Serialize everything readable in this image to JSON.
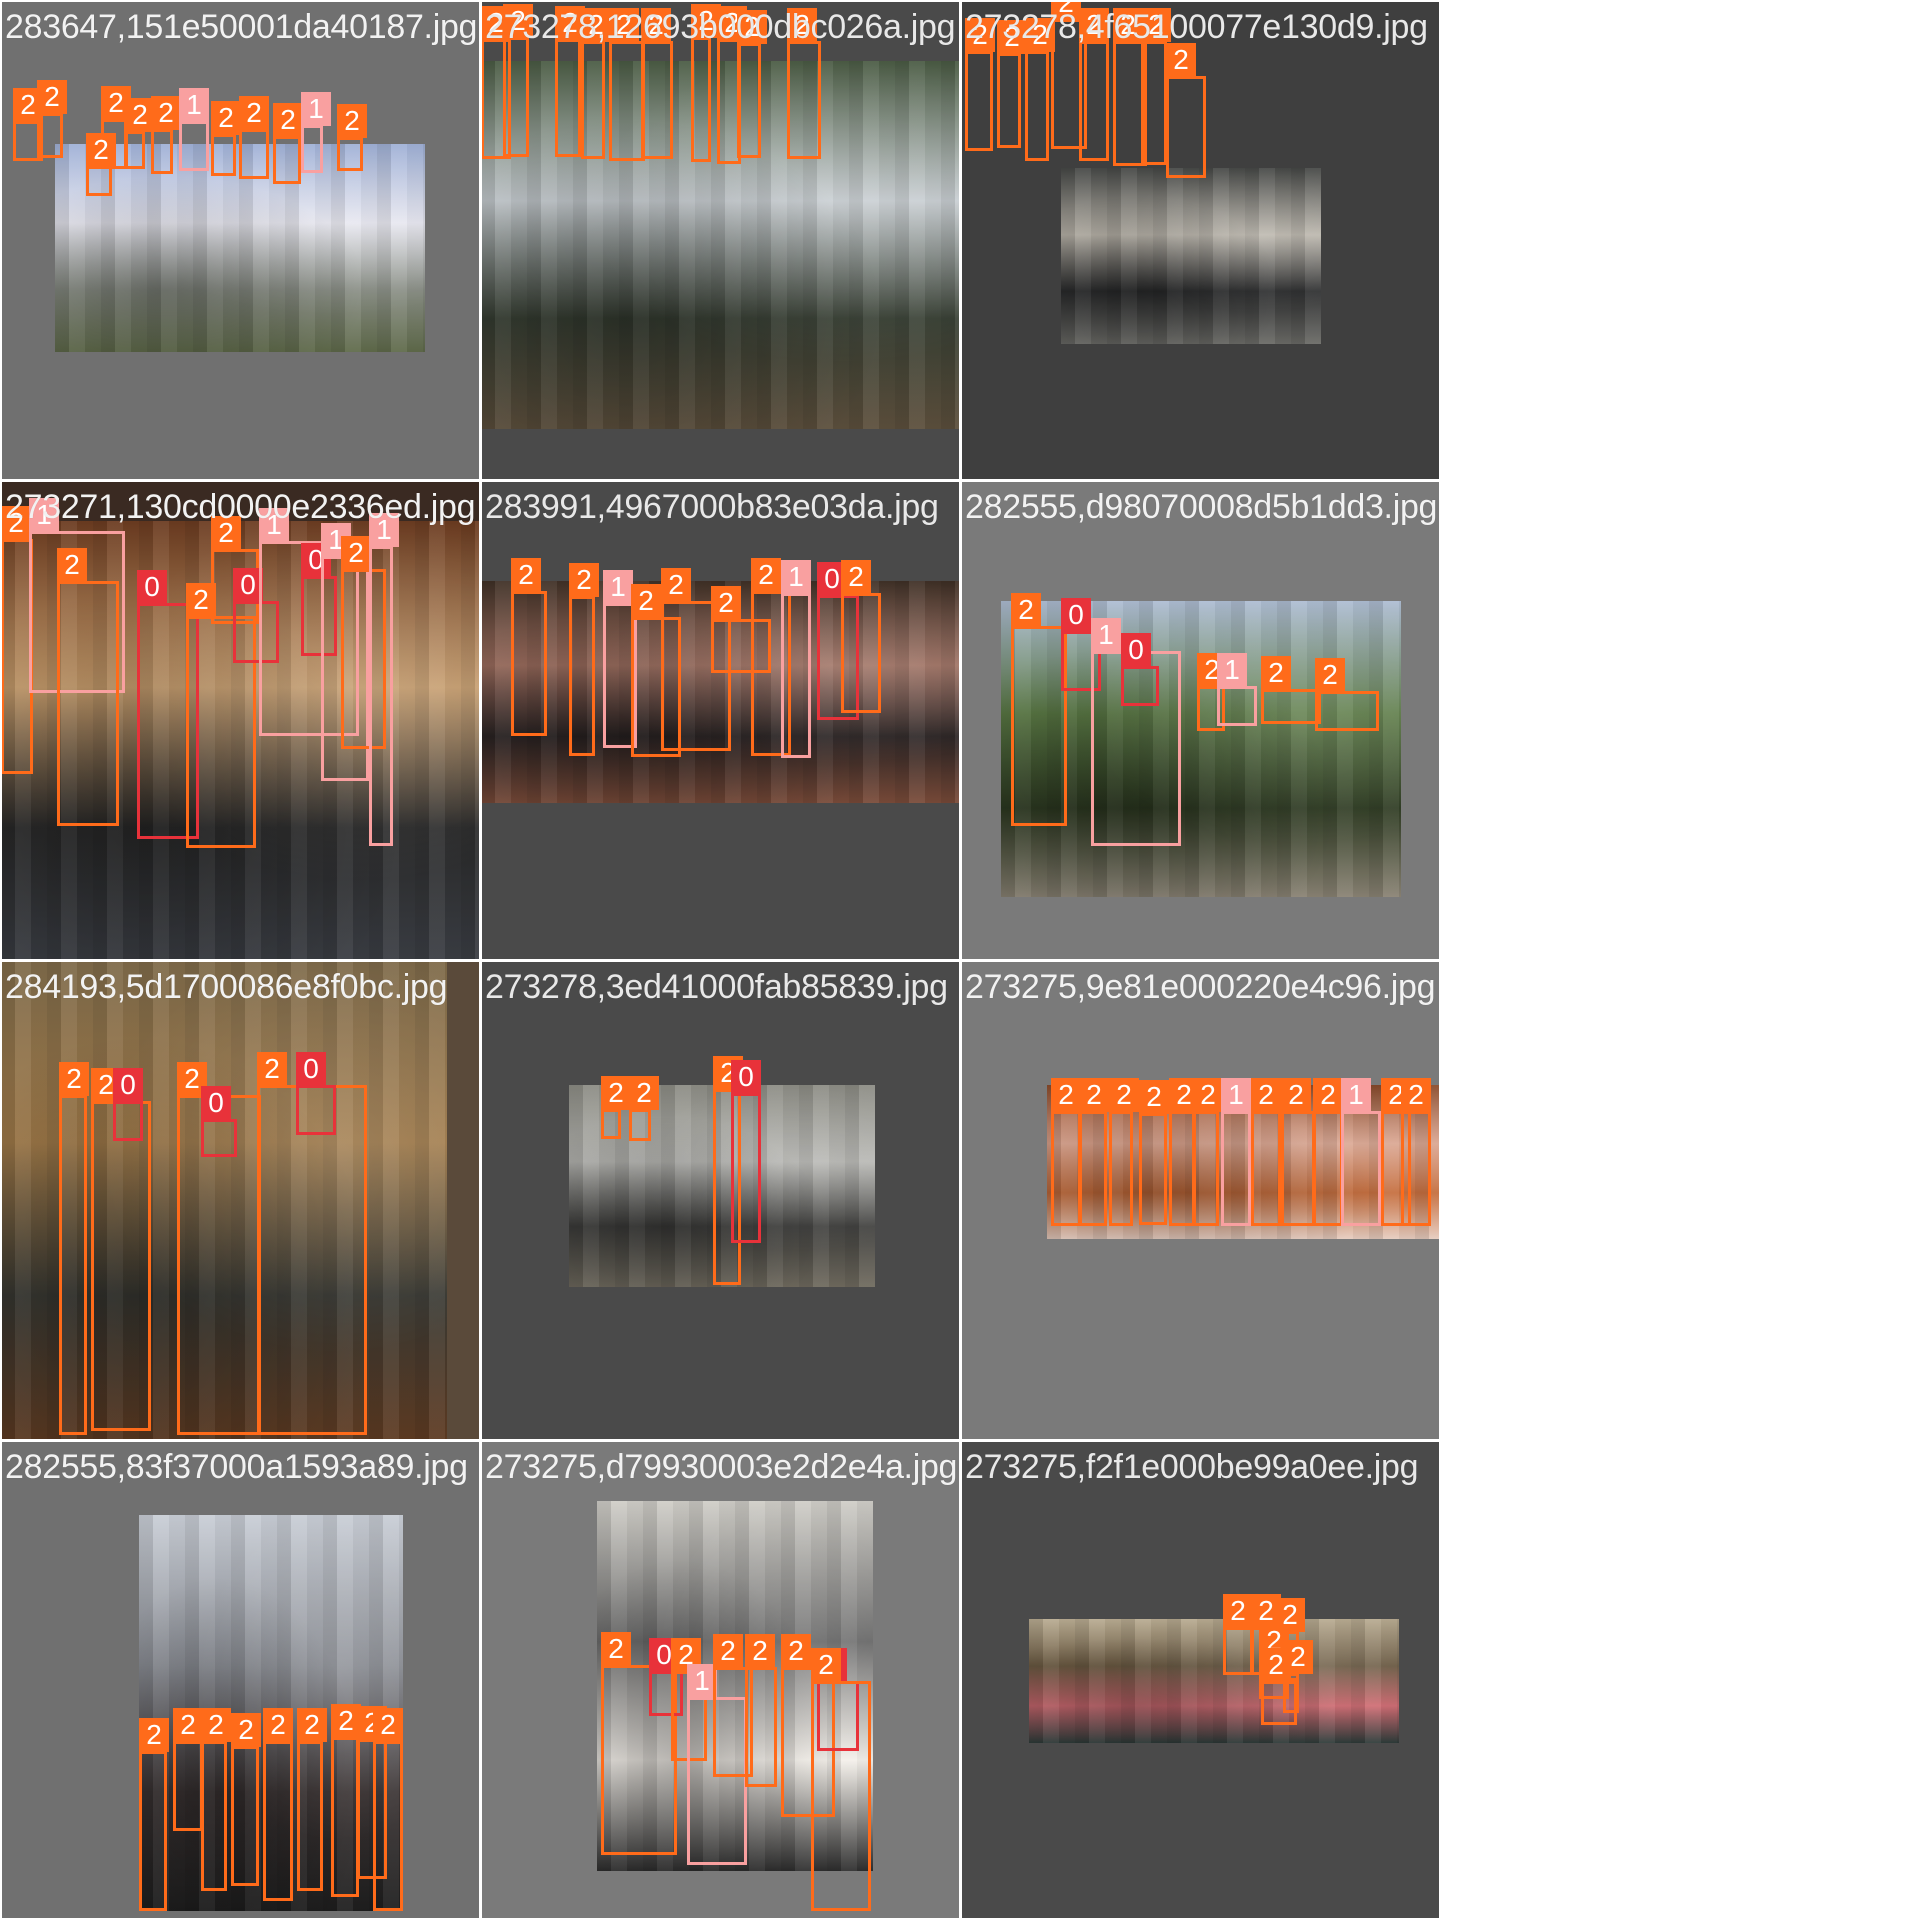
{
  "tiles": [
    {
      "label": "283647,151e50001da40187.jpg",
      "bg": "#707070",
      "photo": {
        "l": 54,
        "t": 143,
        "w": 370,
        "h": 208,
        "colors": [
          "#9fb0d6",
          "#e6e6ef",
          "#8a8f86",
          "#5f6a4a"
        ]
      },
      "boxes": [
        [
          12,
          120,
          30,
          40,
          2
        ],
        [
          36,
          112,
          26,
          45,
          2
        ],
        [
          100,
          118,
          26,
          50,
          2
        ],
        [
          124,
          130,
          20,
          38,
          2
        ],
        [
          150,
          128,
          22,
          45,
          2
        ],
        [
          178,
          120,
          30,
          50,
          1
        ],
        [
          210,
          133,
          25,
          42,
          2
        ],
        [
          238,
          128,
          30,
          50,
          2
        ],
        [
          272,
          135,
          28,
          48,
          2
        ],
        [
          300,
          124,
          22,
          48,
          1
        ],
        [
          336,
          136,
          26,
          34,
          2
        ],
        [
          85,
          165,
          26,
          30,
          2
        ]
      ]
    },
    {
      "label": "273278,12693b000dbc026a.jpg",
      "bg": "#4a4a4a",
      "photo": {
        "l": 0,
        "t": 60,
        "w": 478,
        "h": 368,
        "colors": [
          "#4a5b43",
          "#c6ccd0",
          "#384034",
          "#5c4f3c"
        ]
      },
      "boxes": [
        [
          0,
          38,
          30,
          120,
          2
        ],
        [
          22,
          36,
          26,
          120,
          2
        ],
        [
          74,
          38,
          26,
          118,
          2
        ],
        [
          100,
          40,
          24,
          118,
          2
        ],
        [
          128,
          40,
          36,
          120,
          2
        ],
        [
          160,
          40,
          32,
          118,
          2
        ],
        [
          210,
          36,
          20,
          125,
          2
        ],
        [
          236,
          38,
          24,
          125,
          2
        ],
        [
          256,
          42,
          24,
          115,
          2
        ],
        [
          306,
          40,
          34,
          118,
          2
        ]
      ]
    },
    {
      "label": "273278,4f65100077e130d9.jpg",
      "bg": "#3f3f3f",
      "photo": {
        "l": 100,
        "t": 167,
        "w": 260,
        "h": 176,
        "colors": [
          "#464846",
          "#b9b4aa",
          "#2c2d2e",
          "#6a6a66"
        ]
      },
      "boxes": [
        [
          4,
          50,
          28,
          100,
          2
        ],
        [
          36,
          52,
          24,
          95,
          2
        ],
        [
          64,
          50,
          24,
          110,
          2
        ],
        [
          90,
          18,
          36,
          130,
          2
        ],
        [
          118,
          40,
          30,
          120,
          2
        ],
        [
          152,
          40,
          34,
          125,
          2
        ],
        [
          180,
          40,
          26,
          124,
          2
        ],
        [
          205,
          75,
          40,
          102,
          2
        ]
      ]
    },
    {
      "label": "273271,130cd0000e2336ed.jpg",
      "bg": "#3a2a22",
      "photo": {
        "l": 0,
        "t": 40,
        "w": 478,
        "h": 438,
        "colors": [
          "#6b3b20",
          "#c59b6b",
          "#2b2b2b",
          "#3a3d43"
        ]
      },
      "boxes": [
        [
          0,
          58,
          32,
          235,
          2
        ],
        [
          28,
          50,
          96,
          162,
          1
        ],
        [
          56,
          100,
          62,
          245,
          2
        ],
        [
          136,
          122,
          62,
          236,
          0
        ],
        [
          185,
          135,
          70,
          232,
          2
        ],
        [
          210,
          68,
          48,
          75,
          2
        ],
        [
          232,
          120,
          46,
          62,
          0
        ],
        [
          258,
          60,
          100,
          195,
          1
        ],
        [
          300,
          95,
          36,
          80,
          0
        ],
        [
          320,
          75,
          48,
          225,
          1
        ],
        [
          340,
          88,
          45,
          180,
          2
        ],
        [
          368,
          65,
          24,
          300,
          1
        ]
      ]
    },
    {
      "label": "283991,4967000b83e03da.jpg",
      "bg": "#4a4a4a",
      "photo": {
        "l": 0,
        "t": 100,
        "w": 478,
        "h": 222,
        "colors": [
          "#3f3026",
          "#9c6d5e",
          "#2c2525",
          "#7a4b39"
        ]
      },
      "boxes": [
        [
          30,
          110,
          36,
          145,
          2
        ],
        [
          88,
          115,
          26,
          160,
          2
        ],
        [
          122,
          122,
          34,
          145,
          1
        ],
        [
          150,
          136,
          50,
          140,
          2
        ],
        [
          180,
          120,
          70,
          150,
          2
        ],
        [
          230,
          138,
          60,
          54,
          2
        ],
        [
          270,
          110,
          40,
          165,
          2
        ],
        [
          300,
          112,
          30,
          165,
          1
        ],
        [
          336,
          114,
          42,
          125,
          0
        ],
        [
          360,
          112,
          40,
          120,
          2
        ]
      ]
    },
    {
      "label": "282555,d98070008d5b1dd3.jpg",
      "bg": "#7a7a7a",
      "photo": {
        "l": 40,
        "t": 120,
        "w": 400,
        "h": 296,
        "colors": [
          "#aebdd3",
          "#5b7a45",
          "#2e3b22",
          "#8a8374"
        ]
      },
      "boxes": [
        [
          50,
          145,
          56,
          200,
          2
        ],
        [
          100,
          150,
          40,
          60,
          0
        ],
        [
          130,
          170,
          90,
          195,
          1
        ],
        [
          160,
          185,
          38,
          40,
          0
        ],
        [
          236,
          205,
          28,
          45,
          2
        ],
        [
          256,
          205,
          40,
          40,
          1
        ],
        [
          300,
          208,
          60,
          35,
          2
        ],
        [
          354,
          210,
          64,
          40,
          2
        ]
      ]
    },
    {
      "label": "284193,5d1700086e8f0bc.jpg",
      "bg": "#5a4a3a",
      "photo": {
        "l": 0,
        "t": 0,
        "w": 446,
        "h": 478,
        "colors": [
          "#7e6a4a",
          "#a07a49",
          "#3a3a34",
          "#5e3b22"
        ]
      },
      "boxes": [
        [
          58,
          134,
          28,
          340,
          2
        ],
        [
          90,
          140,
          60,
          330,
          2
        ],
        [
          112,
          140,
          30,
          40,
          0
        ],
        [
          176,
          134,
          84,
          340,
          2
        ],
        [
          200,
          158,
          36,
          38,
          0
        ],
        [
          256,
          124,
          110,
          350,
          2
        ],
        [
          295,
          124,
          40,
          50,
          0
        ]
      ]
    },
    {
      "label": "273278,3ed41000fab85839.jpg",
      "bg": "#4a4a4a",
      "photo": {
        "l": 88,
        "t": 124,
        "w": 306,
        "h": 202,
        "colors": [
          "#8c8c84",
          "#b5b5b1",
          "#3f3f3d",
          "#6f6a5e"
        ]
      },
      "boxes": [
        [
          120,
          148,
          20,
          30,
          2
        ],
        [
          148,
          148,
          22,
          32,
          2
        ],
        [
          232,
          128,
          28,
          196,
          2
        ],
        [
          250,
          132,
          30,
          150,
          0
        ]
      ]
    },
    {
      "label": "273275,9e81e000220e4c96.jpg",
      "bg": "#7a7a7a",
      "photo": {
        "l": 86,
        "t": 124,
        "w": 392,
        "h": 154,
        "colors": [
          "#8a4a2a",
          "#d8a08a",
          "#c46b3a",
          "#e6ccbf"
        ]
      },
      "boxes": [
        [
          90,
          150,
          30,
          115,
          2
        ],
        [
          118,
          150,
          28,
          115,
          2
        ],
        [
          148,
          150,
          24,
          115,
          2
        ],
        [
          178,
          152,
          28,
          112,
          2
        ],
        [
          208,
          150,
          26,
          115,
          2
        ],
        [
          232,
          150,
          26,
          115,
          2
        ],
        [
          260,
          150,
          30,
          115,
          1
        ],
        [
          290,
          150,
          30,
          115,
          2
        ],
        [
          320,
          150,
          34,
          115,
          2
        ],
        [
          352,
          150,
          30,
          115,
          2
        ],
        [
          380,
          150,
          40,
          115,
          1
        ],
        [
          420,
          150,
          30,
          115,
          2
        ],
        [
          440,
          150,
          30,
          115,
          2
        ]
      ]
    },
    {
      "label": "282555,83f37000a1593a89.jpg",
      "bg": "#707070",
      "photo": {
        "l": 138,
        "t": 74,
        "w": 264,
        "h": 396,
        "colors": [
          "#c9ced6",
          "#8a8d94",
          "#3a3333",
          "#1e1e1e"
        ]
      },
      "boxes": [
        [
          138,
          310,
          28,
          160,
          2
        ],
        [
          172,
          300,
          30,
          90,
          2
        ],
        [
          200,
          300,
          26,
          150,
          2
        ],
        [
          230,
          305,
          28,
          140,
          2
        ],
        [
          262,
          300,
          30,
          160,
          2
        ],
        [
          296,
          300,
          26,
          150,
          2
        ],
        [
          330,
          296,
          28,
          160,
          2
        ],
        [
          356,
          298,
          30,
          140,
          2
        ],
        [
          372,
          300,
          30,
          170,
          2
        ]
      ]
    },
    {
      "label": "273275,d79930003e2d2e4a.jpg",
      "bg": "#7a7a7a",
      "photo": {
        "l": 116,
        "t": 60,
        "w": 276,
        "h": 370,
        "colors": [
          "#d0cec8",
          "#6a6a6a",
          "#f4f0ea",
          "#2e2e2e"
        ]
      },
      "boxes": [
        [
          120,
          224,
          76,
          190,
          2
        ],
        [
          168,
          230,
          34,
          45,
          0
        ],
        [
          190,
          230,
          36,
          90,
          2
        ],
        [
          206,
          256,
          60,
          168,
          1
        ],
        [
          232,
          226,
          40,
          110,
          2
        ],
        [
          264,
          226,
          32,
          120,
          2
        ],
        [
          300,
          226,
          54,
          150,
          2
        ],
        [
          336,
          240,
          42,
          70,
          0
        ],
        [
          330,
          240,
          60,
          230,
          2
        ]
      ]
    },
    {
      "label": "273275,f2f1e000be99a0ee.jpg",
      "bg": "#4a4a4a",
      "photo": {
        "l": 68,
        "t": 178,
        "w": 370,
        "h": 124,
        "colors": [
          "#b9ac92",
          "#6b5a42",
          "#cf6b72",
          "#2e3c3a"
        ]
      },
      "boxes": [
        [
          262,
          186,
          30,
          48,
          2
        ],
        [
          290,
          186,
          24,
          48,
          2
        ],
        [
          314,
          190,
          24,
          50,
          2
        ],
        [
          298,
          216,
          30,
          42,
          2
        ],
        [
          300,
          240,
          36,
          44,
          2
        ],
        [
          322,
          232,
          16,
          40,
          2
        ]
      ]
    }
  ]
}
